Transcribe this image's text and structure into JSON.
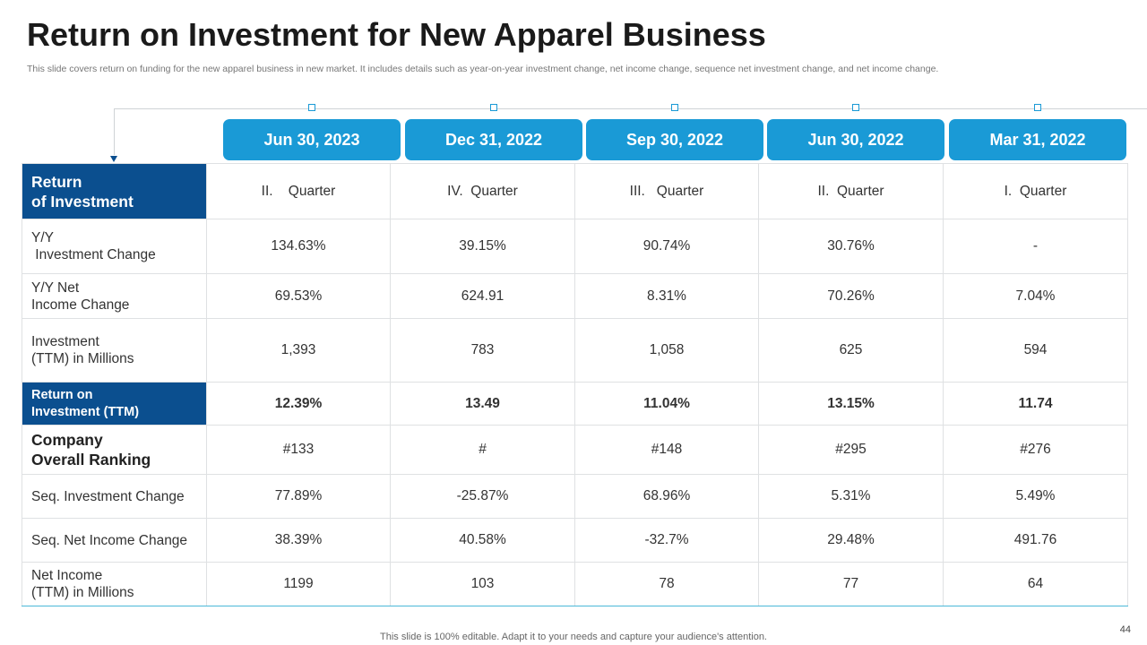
{
  "title": "Return on Investment for New Apparel Business",
  "subtitle": "This slide covers return on funding for the new apparel business in new market. It includes details such as year-on-year investment change, net income change, sequence net investment change, and net income change.",
  "dates": [
    "Jun 30, 2023",
    "Dec 31, 2022",
    "Sep 30, 2022",
    "Jun 30, 2022",
    "Mar 31, 2022"
  ],
  "header": {
    "label_line1": "Return",
    "label_line2": "of Investment",
    "quarters": [
      "II.    Quarter",
      "IV.  Quarter",
      "III.   Quarter",
      "II.  Quarter",
      "I.  Quarter"
    ]
  },
  "rows": [
    {
      "label_line1": "Y/Y",
      "label_line2": " Investment Change",
      "values": [
        "134.63%",
        "39.15%",
        "90.74%",
        "30.76%",
        "-"
      ]
    },
    {
      "label_line1": "Y/Y Net",
      "label_line2": "Income Change",
      "values": [
        "69.53%",
        "624.91",
        "8.31%",
        "70.26%",
        "7.04%"
      ]
    },
    {
      "label_line1": "Investment",
      "label_line2": "(TTM) in Millions",
      "values": [
        "1,393",
        "783",
        "1,058",
        "625",
        "594"
      ]
    },
    {
      "label_line1": "Return on",
      "label_line2": "Investment (TTM)",
      "values": [
        "12.39%",
        "13.49",
        "11.04%",
        "13.15%",
        "11.74"
      ]
    },
    {
      "label_line1": "Company",
      "label_line2": "Overall Ranking",
      "values": [
        "#133",
        "#",
        "#148",
        "#295",
        "#276"
      ]
    },
    {
      "label": "Seq. Investment Change",
      "values": [
        "77.89%",
        "-25.87%",
        "68.96%",
        "5.31%",
        "5.49%"
      ]
    },
    {
      "label": "Seq. Net Income Change",
      "values": [
        "38.39%",
        "40.58%",
        "-32.7%",
        "29.48%",
        "491.76"
      ]
    },
    {
      "label_line1": "Net Income",
      "label_line2": "(TTM) in Millions",
      "values": [
        "1199",
        "103",
        "78",
        "77",
        "64"
      ]
    }
  ],
  "footer": "This slide is 100% editable. Adapt it to your needs and capture your audience's attention.",
  "page_number": "44",
  "colors": {
    "accent": "#1a9ad6",
    "dark_blue": "#0b4f8f",
    "border": "#dfe1e3"
  }
}
